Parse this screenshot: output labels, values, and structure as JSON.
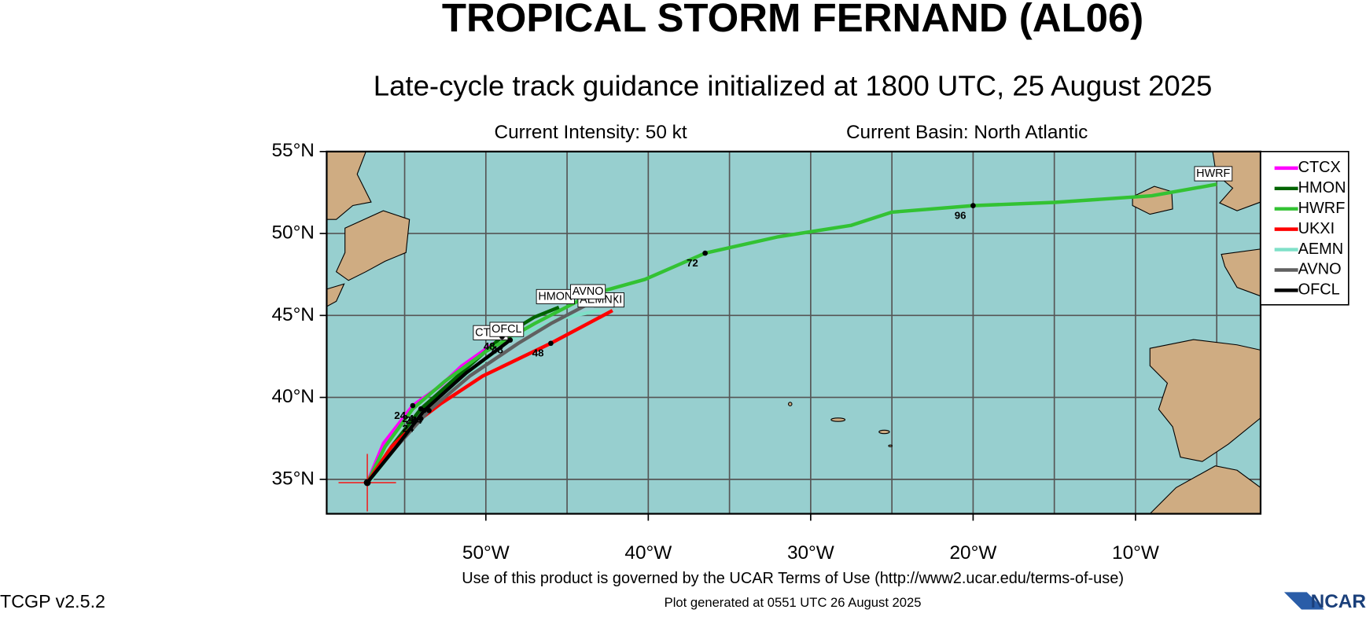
{
  "header": {
    "title": "TROPICAL STORM FERNAND (AL06)",
    "subtitle": "Late-cycle track guidance initialized at 1800 UTC, 25 August 2025",
    "intensity": "Current Intensity: 50 kt",
    "basin": "Current Basin: North Atlantic"
  },
  "chart_data": {
    "type": "track-map",
    "xlim": [
      -59.8,
      -2.3
    ],
    "ylim": [
      32.9,
      55
    ],
    "xticks": [
      {
        "value": -50,
        "label": "50°W"
      },
      {
        "value": -40,
        "label": "40°W"
      },
      {
        "value": -30,
        "label": "30°W"
      },
      {
        "value": -20,
        "label": "20°W"
      },
      {
        "value": -10,
        "label": "10°W"
      }
    ],
    "x_gridlines": [
      -55,
      -45,
      -35,
      -25,
      -15,
      -5
    ],
    "yticks": [
      {
        "value": 35,
        "label": "35°N"
      },
      {
        "value": 40,
        "label": "40°N"
      },
      {
        "value": 45,
        "label": "45°N"
      },
      {
        "value": 50,
        "label": "50°N"
      },
      {
        "value": 55,
        "label": "55°N"
      }
    ],
    "grid": true,
    "initial_position": {
      "lon": -57.3,
      "lat": 34.8
    },
    "series": [
      {
        "name": "CTCX",
        "color": "#ff00ff",
        "x": [
          -57.3,
          -56.3,
          -54.5,
          -52.8,
          -51.5,
          -49.5
        ],
        "values": [
          34.8,
          37.2,
          39.5,
          40.7,
          41.9,
          43.3
        ],
        "point_labels": [
          null,
          null,
          "24",
          null,
          null,
          null
        ]
      },
      {
        "name": "HMON",
        "color": "#006400",
        "x": [
          -57.3,
          -55.8,
          -54.0,
          -51.5,
          -49.0,
          -47.0,
          -45.5
        ],
        "values": [
          34.8,
          37.0,
          39.3,
          41.5,
          43.7,
          44.9,
          45.5
        ],
        "point_labels": [
          null,
          null,
          "24",
          null,
          "48",
          null,
          null
        ]
      },
      {
        "name": "HWRF",
        "color": "#33c233",
        "x": [
          -57.3,
          -56.2,
          -54.5,
          -52.5,
          -50.0,
          -47.0,
          -43.5,
          -40.2,
          -36.5,
          -32.0,
          -27.5,
          -25.0,
          -20.0,
          -15.0,
          -9.0,
          -5.0
        ],
        "values": [
          34.8,
          37.0,
          39.3,
          41.0,
          42.8,
          44.5,
          46.3,
          47.2,
          48.8,
          49.8,
          50.5,
          51.3,
          51.7,
          51.9,
          52.3,
          53.0
        ],
        "point_labels": [
          null,
          null,
          null,
          null,
          null,
          null,
          null,
          null,
          "72",
          null,
          null,
          null,
          "96",
          null,
          null,
          null
        ]
      },
      {
        "name": "UKXI",
        "color": "#ff0000",
        "x": [
          -57.3,
          -55.8,
          -54.0,
          -52.8,
          -50.2,
          -46.0,
          -42.2
        ],
        "values": [
          34.8,
          37.0,
          38.7,
          39.6,
          41.3,
          43.3,
          45.3
        ],
        "point_labels": [
          null,
          null,
          "24",
          null,
          null,
          "48",
          null
        ]
      },
      {
        "name": "AEMN",
        "color": "#7fe0c8",
        "x": [
          -57.2,
          -55.5,
          -53.5,
          -51.0,
          -48.5,
          -45.5,
          -43.0
        ],
        "values": [
          34.8,
          37.0,
          39.3,
          41.5,
          43.5,
          44.8,
          45.3
        ],
        "point_labels": [
          null,
          null,
          null,
          null,
          null,
          null,
          null
        ]
      },
      {
        "name": "AVNO",
        "color": "#606060",
        "x": [
          -57.3,
          -55.5,
          -53.5,
          -51.0,
          -48.0,
          -46.0,
          -43.5
        ],
        "values": [
          34.8,
          37.0,
          39.2,
          41.3,
          43.3,
          44.5,
          45.8
        ],
        "point_labels": [
          null,
          null,
          "24",
          null,
          null,
          null,
          null
        ]
      },
      {
        "name": "OFCL",
        "color": "#000000",
        "x": [
          -57.3,
          -55.5,
          -53.8,
          -51.2,
          -48.5
        ],
        "values": [
          34.8,
          37.0,
          39.2,
          41.5,
          43.5
        ],
        "point_labels": [
          null,
          null,
          "24",
          null,
          "48"
        ]
      }
    ]
  },
  "footer": {
    "terms": "Use of this product is governed by the UCAR Terms of Use (http://www2.ucar.edu/terms-of-use)",
    "generated": "Plot generated at 0551 UTC   26 August 2025",
    "version": "TCGP v2.5.2",
    "logo": "NCAR"
  }
}
